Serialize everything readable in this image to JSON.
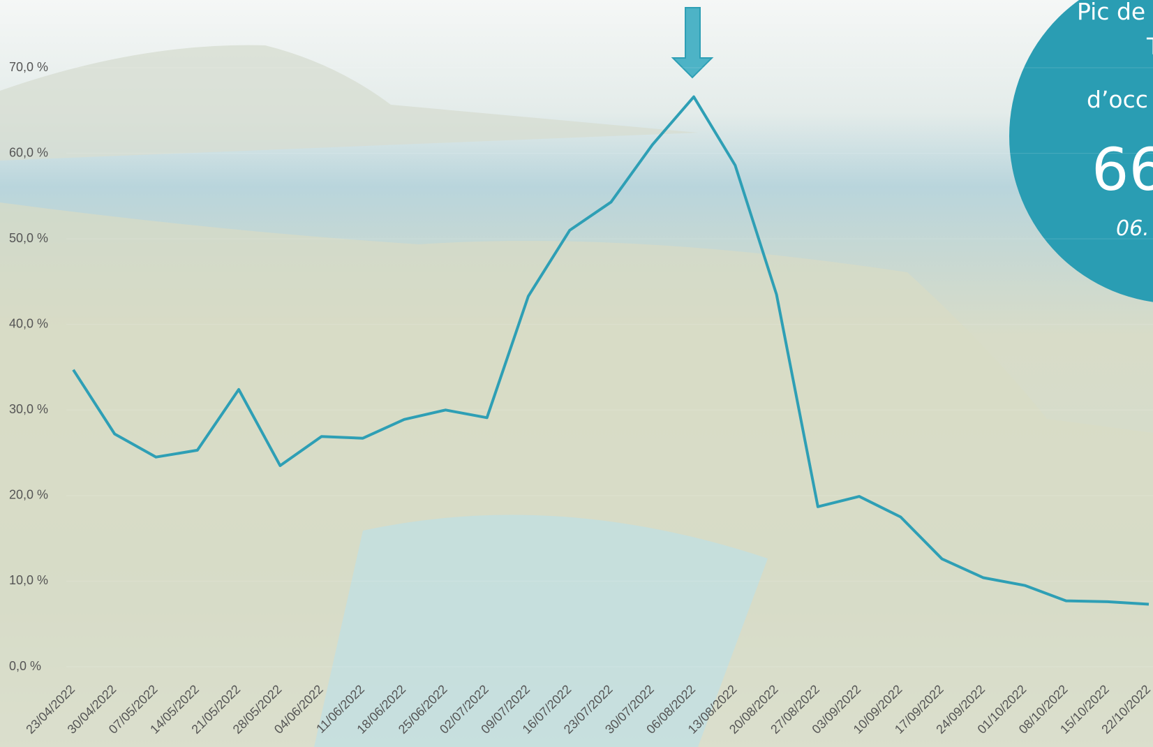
{
  "chart_data": {
    "type": "line",
    "categories": [
      "23/04/2022",
      "30/04/2022",
      "07/05/2022",
      "14/05/2022",
      "21/05/2022",
      "28/05/2022",
      "04/06/2022",
      "11/06/2022",
      "18/06/2022",
      "25/06/2022",
      "02/07/2022",
      "09/07/2022",
      "16/07/2022",
      "23/07/2022",
      "30/07/2022",
      "06/08/2022",
      "13/08/2022",
      "20/08/2022",
      "27/08/2022",
      "03/09/2022",
      "10/09/2022",
      "17/09/2022",
      "24/09/2022",
      "01/10/2022",
      "08/10/2022",
      "15/10/2022",
      "22/10/2022"
    ],
    "series": [
      {
        "color": "#2e9fb5",
        "values": [
          34.7,
          27.2,
          24.5,
          25.3,
          32.4,
          23.5,
          26.9,
          26.7,
          28.9,
          30.0,
          29.1,
          43.3,
          51.0,
          54.3,
          61.0,
          66.6,
          58.6,
          43.5,
          18.7,
          19.9,
          17.5,
          12.6,
          10.4,
          9.5,
          7.7,
          7.6,
          7.3
        ]
      }
    ],
    "ylim": [
      0,
      70
    ],
    "yticks": [
      {
        "value": 0,
        "label": "0,0 %"
      },
      {
        "value": 10,
        "label": "10,0 %"
      },
      {
        "value": 20,
        "label": "20,0 %"
      },
      {
        "value": 30,
        "label": "30,0 %"
      },
      {
        "value": 40,
        "label": "40,0 %"
      },
      {
        "value": 50,
        "label": "50,0 %"
      },
      {
        "value": 60,
        "label": "60,0 %"
      },
      {
        "value": 70,
        "label": "70,0 %"
      }
    ],
    "annotations": [
      "Pic de",
      "T",
      "d’occ",
      "66",
      "06."
    ]
  }
}
